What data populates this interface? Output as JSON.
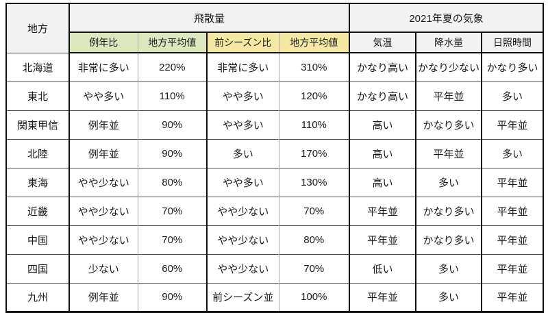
{
  "chart_data": {
    "type": "table",
    "corner_header": "地方",
    "groups": [
      {
        "label": "飛散量",
        "span": 4
      },
      {
        "label": "2021年夏の気象",
        "span": 3
      }
    ],
    "sub_columns": [
      "例年比",
      "地方平均値",
      "前シーズン比",
      "地方平均値",
      "気温",
      "降水量",
      "日照時間"
    ],
    "rows": [
      {
        "region": "北海道",
        "values": [
          "非常に多い",
          "220%",
          "非常に多い",
          "310%",
          "かなり高い",
          "かなり少ない",
          "かなり多い"
        ]
      },
      {
        "region": "東北",
        "values": [
          "やや多い",
          "110%",
          "やや多い",
          "120%",
          "かなり高い",
          "平年並",
          "多い"
        ]
      },
      {
        "region": "関東甲信",
        "values": [
          "例年並",
          "90%",
          "やや多い",
          "110%",
          "高い",
          "かなり多い",
          "平年並"
        ]
      },
      {
        "region": "北陸",
        "values": [
          "例年並",
          "90%",
          "多い",
          "170%",
          "高い",
          "平年並",
          "多い"
        ]
      },
      {
        "region": "東海",
        "values": [
          "やや少ない",
          "80%",
          "やや多い",
          "130%",
          "高い",
          "多い",
          "平年並"
        ]
      },
      {
        "region": "近畿",
        "values": [
          "やや少ない",
          "70%",
          "やや少ない",
          "70%",
          "平年並",
          "かなり多い",
          "平年並"
        ]
      },
      {
        "region": "中国",
        "values": [
          "やや少ない",
          "70%",
          "やや少ない",
          "80%",
          "平年並",
          "かなり多い",
          "平年並"
        ]
      },
      {
        "region": "四国",
        "values": [
          "少ない",
          "60%",
          "やや少ない",
          "70%",
          "低い",
          "多い",
          "平年並"
        ]
      },
      {
        "region": "九州",
        "values": [
          "例年並",
          "90%",
          "前シーズン並",
          "100%",
          "平年並",
          "多い",
          "平年並"
        ]
      }
    ],
    "layout_hints": {
      "grid": true,
      "column_bg": [
        "none",
        "green",
        "green",
        "yellow",
        "yellow",
        "gray",
        "gray",
        "gray"
      ]
    }
  },
  "colors": {
    "header_gray_bg": "#f2f2f2",
    "green_header_bg": "#dce7bd",
    "yellow_header_bg": "#f5e8a3",
    "border_strong": "#111111",
    "border_thin": "#a6a6a6",
    "row_line": "#4d4d4d",
    "text": "#1a1a1a"
  }
}
